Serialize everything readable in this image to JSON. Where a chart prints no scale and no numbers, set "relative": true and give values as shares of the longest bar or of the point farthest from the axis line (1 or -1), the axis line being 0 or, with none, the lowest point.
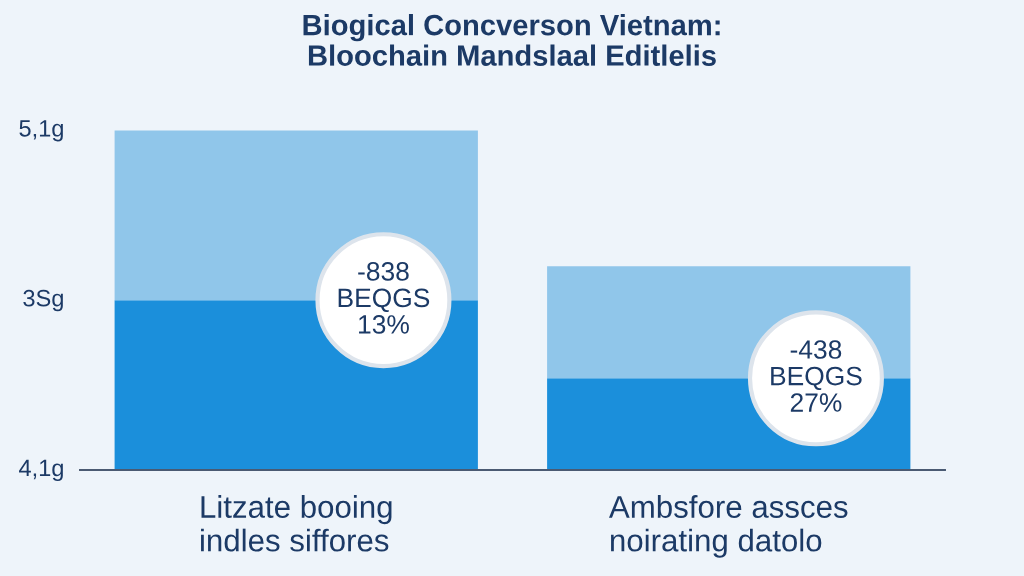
{
  "chart_data": {
    "type": "bar",
    "title": "Biogical Concverson Vietnam:\nBloochain Mandslaal Editlelis",
    "categories": [
      "Litzate booing\nindles siffores",
      "Ambsfore assces\nnoirating datolo"
    ],
    "stacked": true,
    "relative": true,
    "series": [
      {
        "color": "#1b8fdb",
        "values": [
          0.5,
          0.27
        ]
      },
      {
        "color": "#90c6ea",
        "values": [
          0.5,
          0.33
        ]
      }
    ],
    "annotations": [
      "5,1g",
      "3Sg",
      "4,1g",
      "-838\nBEQGS\n13%",
      "-438\nBEQGS\n27%"
    ]
  }
}
